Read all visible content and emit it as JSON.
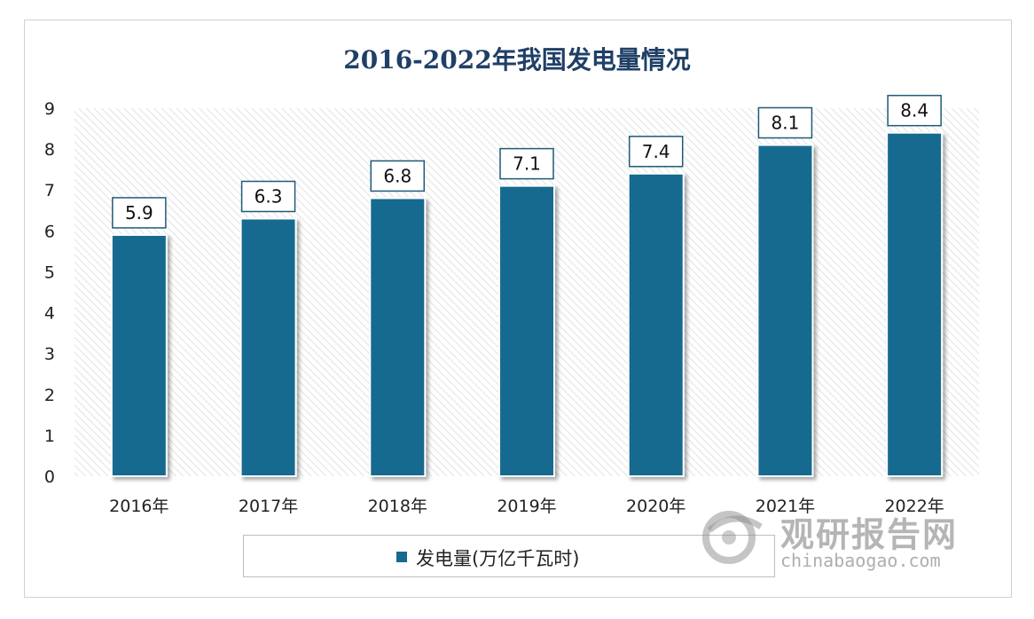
{
  "chart_data": {
    "type": "bar",
    "title": "2016-2022年我国发电量情况",
    "categories": [
      "2016年",
      "2017年",
      "2018年",
      "2019年",
      "2020年",
      "2021年",
      "2022年"
    ],
    "series": [
      {
        "name": "发电量(万亿千瓦时)",
        "values": [
          5.9,
          6.3,
          6.8,
          7.1,
          7.4,
          8.1,
          8.4
        ]
      }
    ],
    "ylim": [
      0,
      9
    ],
    "yticks": [
      "0",
      "1",
      "2",
      "3",
      "4",
      "5",
      "6",
      "7",
      "8",
      "9"
    ],
    "xlabel": "",
    "ylabel": "",
    "grid": false,
    "data_labels": true,
    "legend_position": "bottom",
    "colors": {
      "bar": "#176a8f",
      "bar_outline": "#ffffff",
      "title": "#1f3f66",
      "hatch": "#e0e0e0"
    }
  },
  "watermark": {
    "text": "观研报告网",
    "url": "chinabaogao.com",
    "icon": "chinabaogao-logo-icon"
  }
}
